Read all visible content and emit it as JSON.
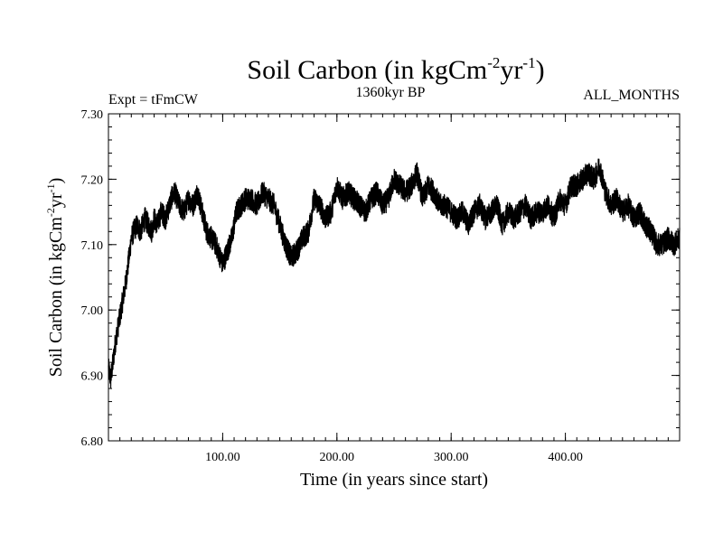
{
  "chart_data": {
    "type": "line",
    "title": {
      "base": "Soil Carbon (in kgCm",
      "sup1": "-2",
      "mid": "yr",
      "sup2": "-1",
      "end": ")"
    },
    "subtitle_left": "Expt = tFmCW",
    "subtitle_center": "1360kyr BP",
    "subtitle_right": "ALL_MONTHS",
    "xlabel": "Time (in years since start)",
    "ylabel": {
      "base": "Soil Carbon (in kgCm",
      "sup1": "-2",
      "mid": "yr",
      "sup2": "-1",
      "end": ")"
    },
    "xlim": [
      0,
      500
    ],
    "ylim": [
      6.8,
      7.3
    ],
    "x_ticks": [
      100,
      200,
      300,
      400
    ],
    "x_tick_labels": [
      "100.00",
      "200.00",
      "300.00",
      "400.00"
    ],
    "y_ticks": [
      6.8,
      6.9,
      7.0,
      7.1,
      7.2,
      7.3
    ],
    "y_tick_labels": [
      "6.80",
      "6.90",
      "7.00",
      "7.10",
      "7.20",
      "7.30"
    ],
    "grid": false,
    "series": [
      {
        "name": "Soil Carbon",
        "color": "#000000",
        "x": [
          0,
          2,
          4,
          6,
          8,
          10,
          12,
          15,
          18,
          20,
          22,
          25,
          28,
          30,
          32,
          35,
          38,
          40,
          43,
          46,
          50,
          55,
          58,
          62,
          66,
          70,
          74,
          78,
          82,
          86,
          90,
          94,
          98,
          100,
          104,
          108,
          112,
          116,
          120,
          125,
          130,
          135,
          140,
          145,
          150,
          155,
          160,
          165,
          170,
          175,
          180,
          185,
          190,
          195,
          200,
          205,
          210,
          215,
          220,
          225,
          230,
          235,
          240,
          245,
          250,
          255,
          260,
          265,
          270,
          275,
          280,
          285,
          290,
          295,
          300,
          305,
          310,
          315,
          320,
          325,
          330,
          335,
          340,
          345,
          350,
          355,
          360,
          365,
          370,
          375,
          380,
          385,
          390,
          395,
          400,
          405,
          410,
          415,
          420,
          425,
          430,
          435,
          440,
          445,
          450,
          455,
          460,
          465,
          470,
          475,
          480,
          485,
          490,
          495,
          500
        ],
        "values": [
          6.91,
          6.895,
          6.92,
          6.95,
          6.97,
          6.99,
          7.01,
          7.04,
          7.08,
          7.11,
          7.12,
          7.13,
          7.12,
          7.13,
          7.14,
          7.13,
          7.12,
          7.14,
          7.13,
          7.15,
          7.14,
          7.17,
          7.18,
          7.16,
          7.15,
          7.17,
          7.16,
          7.18,
          7.15,
          7.12,
          7.11,
          7.1,
          7.08,
          7.07,
          7.09,
          7.11,
          7.15,
          7.16,
          7.17,
          7.17,
          7.16,
          7.18,
          7.17,
          7.16,
          7.13,
          7.1,
          7.08,
          7.09,
          7.11,
          7.12,
          7.17,
          7.16,
          7.14,
          7.15,
          7.19,
          7.17,
          7.18,
          7.17,
          7.16,
          7.15,
          7.17,
          7.18,
          7.16,
          7.17,
          7.2,
          7.19,
          7.18,
          7.19,
          7.21,
          7.17,
          7.19,
          7.18,
          7.16,
          7.16,
          7.15,
          7.14,
          7.15,
          7.13,
          7.15,
          7.16,
          7.14,
          7.15,
          7.16,
          7.13,
          7.15,
          7.14,
          7.15,
          7.16,
          7.14,
          7.15,
          7.15,
          7.16,
          7.14,
          7.17,
          7.16,
          7.19,
          7.19,
          7.2,
          7.21,
          7.2,
          7.22,
          7.18,
          7.16,
          7.17,
          7.15,
          7.16,
          7.14,
          7.15,
          7.13,
          7.12,
          7.1,
          7.1,
          7.11,
          7.1,
          7.11
        ]
      }
    ]
  }
}
